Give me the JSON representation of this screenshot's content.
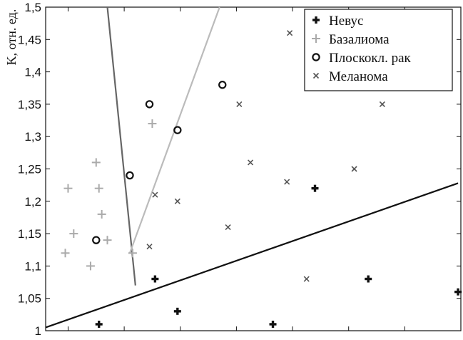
{
  "chart_data": {
    "type": "scatter",
    "ylabel": "K, отн. ед.",
    "xlabel": "",
    "ylim": [
      1,
      1.5
    ],
    "xlim": [
      0.6,
      8.0
    ],
    "y_ticks": [
      "1",
      "1,05",
      "1,1",
      "1,15",
      "1,2",
      "1,25",
      "1,3",
      "1,35",
      "1,4",
      "1,45",
      "1,5"
    ],
    "y_tick_values": [
      1,
      1.05,
      1.1,
      1.15,
      1.2,
      1.25,
      1.3,
      1.35,
      1.4,
      1.45,
      1.5
    ],
    "x_tick_values": [
      1,
      2,
      3,
      4,
      5,
      6,
      7,
      8
    ],
    "grid": false,
    "legend_position": "top-right",
    "series": [
      {
        "name": "Невус",
        "marker": "plus-bold",
        "color": "#111111",
        "points": [
          [
            1.55,
            1.01
          ],
          [
            2.55,
            1.08
          ],
          [
            2.95,
            1.03
          ],
          [
            4.65,
            1.01
          ],
          [
            5.4,
            1.22
          ],
          [
            6.35,
            1.08
          ],
          [
            7.95,
            1.06
          ]
        ]
      },
      {
        "name": "Базалиома",
        "marker": "plus",
        "color": "#aaaaaa",
        "points": [
          [
            0.95,
            1.12
          ],
          [
            1.0,
            1.22
          ],
          [
            1.1,
            1.15
          ],
          [
            1.4,
            1.1
          ],
          [
            1.5,
            1.26
          ],
          [
            1.55,
            1.22
          ],
          [
            1.6,
            1.18
          ],
          [
            1.7,
            1.14
          ],
          [
            2.15,
            1.12
          ],
          [
            2.5,
            1.32
          ]
        ]
      },
      {
        "name": "Плоскокл. рак",
        "marker": "circle",
        "color": "#111111",
        "points": [
          [
            1.5,
            1.14
          ],
          [
            2.1,
            1.24
          ],
          [
            2.45,
            1.35
          ],
          [
            2.95,
            1.31
          ],
          [
            3.75,
            1.38
          ]
        ]
      },
      {
        "name": "Меланома",
        "marker": "x",
        "color": "#555555",
        "points": [
          [
            2.45,
            1.13
          ],
          [
            2.55,
            1.21
          ],
          [
            2.95,
            1.2
          ],
          [
            3.85,
            1.16
          ],
          [
            4.05,
            1.35
          ],
          [
            4.25,
            1.26
          ],
          [
            4.9,
            1.23
          ],
          [
            4.95,
            1.46
          ],
          [
            5.25,
            1.08
          ],
          [
            6.1,
            1.25
          ],
          [
            6.6,
            1.35
          ]
        ]
      }
    ],
    "lines": [
      {
        "from": [
          0.6,
          1.005
        ],
        "to": [
          7.95,
          1.228
        ],
        "color": "#111111"
      },
      {
        "from": [
          1.7,
          1.5
        ],
        "to": [
          2.2,
          1.07
        ],
        "color": "#666666"
      },
      {
        "from": [
          2.1,
          1.12
        ],
        "to": [
          3.7,
          1.5
        ],
        "color": "#bbbbbb"
      }
    ]
  }
}
